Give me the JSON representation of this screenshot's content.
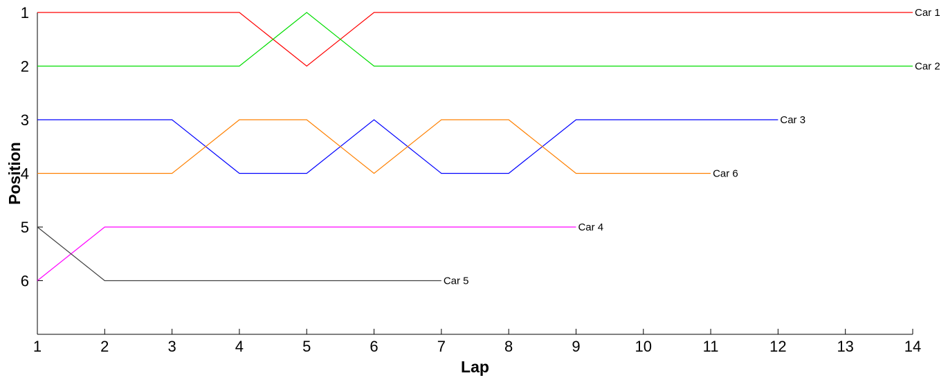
{
  "chart_data": {
    "type": "line",
    "xlabel": "Lap",
    "ylabel": "Position",
    "xlim": [
      1,
      14
    ],
    "ylim": [
      1,
      7
    ],
    "y_inverted": true,
    "xticks": [
      "1",
      "2",
      "3",
      "4",
      "5",
      "6",
      "7",
      "8",
      "9",
      "10",
      "11",
      "12",
      "13",
      "14"
    ],
    "yticks": [
      "1",
      "2",
      "3",
      "4",
      "5",
      "6"
    ],
    "grid": false,
    "legend": "none (series labeled at line ends)",
    "series": [
      {
        "name": "Car 1",
        "color": "#ff0000",
        "x": [
          1,
          2,
          3,
          4,
          5,
          6,
          7,
          8,
          9,
          10,
          11,
          12,
          13,
          14
        ],
        "y": [
          1,
          1,
          1,
          1,
          2,
          1,
          1,
          1,
          1,
          1,
          1,
          1,
          1,
          1
        ]
      },
      {
        "name": "Car 2",
        "color": "#00dd00",
        "x": [
          1,
          2,
          3,
          4,
          5,
          6,
          7,
          8,
          9,
          10,
          11,
          12,
          13,
          14
        ],
        "y": [
          2,
          2,
          2,
          2,
          1,
          2,
          2,
          2,
          2,
          2,
          2,
          2,
          2,
          2
        ]
      },
      {
        "name": "Car 3",
        "color": "#0000ff",
        "x": [
          1,
          2,
          3,
          4,
          5,
          6,
          7,
          8,
          9,
          10,
          11,
          12
        ],
        "y": [
          3,
          3,
          3,
          4,
          4,
          3,
          4,
          4,
          3,
          3,
          3,
          3
        ]
      },
      {
        "name": "Car 6",
        "color": "#ff8000",
        "x": [
          1,
          2,
          3,
          4,
          5,
          6,
          7,
          8,
          9,
          10,
          11
        ],
        "y": [
          4,
          4,
          4,
          3,
          3,
          4,
          3,
          3,
          4,
          4,
          4
        ]
      },
      {
        "name": "Car 4",
        "color": "#ff00ff",
        "x": [
          1,
          2,
          3,
          4,
          5,
          6,
          7,
          8,
          9
        ],
        "y": [
          6,
          5,
          5,
          5,
          5,
          5,
          5,
          5,
          5
        ]
      },
      {
        "name": "Car 5",
        "color": "#404040",
        "x": [
          1,
          2,
          3,
          4,
          5,
          6,
          7
        ],
        "y": [
          5,
          6,
          6,
          6,
          6,
          6,
          6
        ]
      }
    ]
  }
}
